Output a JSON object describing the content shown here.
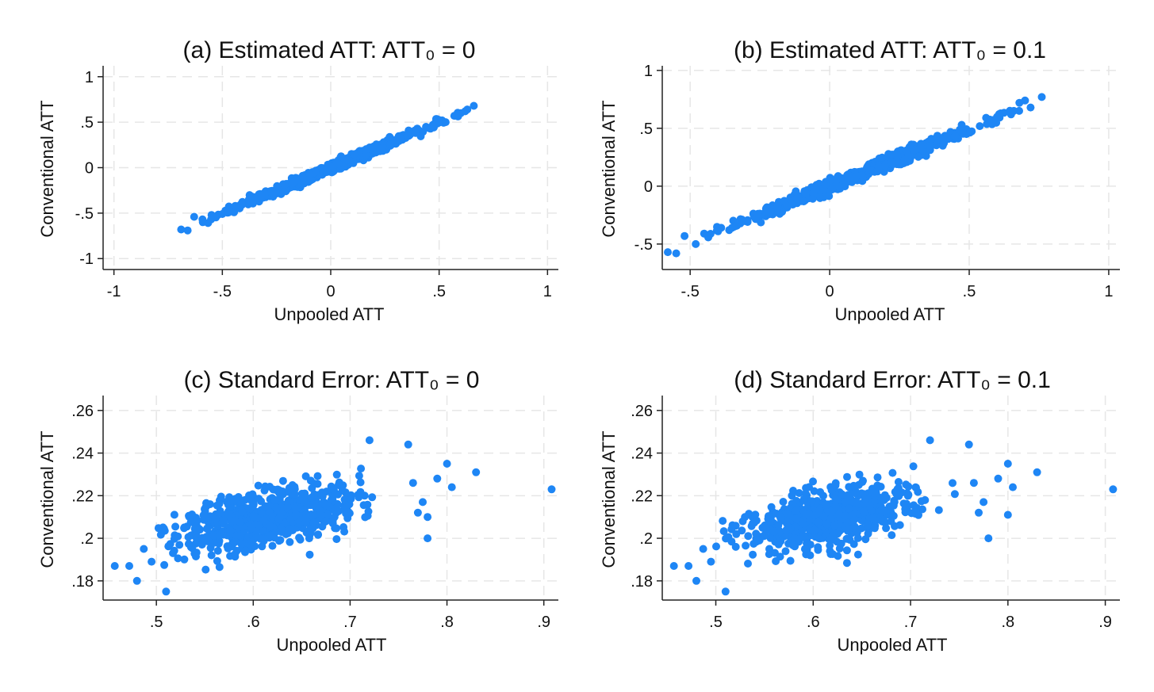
{
  "figure": {
    "point_color": "#1e86f5",
    "grid_color": "#e6e6e6",
    "axis_color": "#222222"
  },
  "chart_data": [
    {
      "type": "scatter",
      "title": "(a) Estimated ATT: ATT₀ = 0",
      "xlabel": "Unpooled ATT",
      "ylabel": "Conventional ATT",
      "xlim": [
        -1.05,
        1.05
      ],
      "ylim": [
        -1.12,
        1.12
      ],
      "xticks": [
        -1,
        -0.5,
        0,
        0.5,
        1
      ],
      "xtick_labels": [
        "-1",
        "-.5",
        "0",
        ".5",
        "1"
      ],
      "yticks": [
        -1,
        -0.5,
        0,
        0.5,
        1
      ],
      "ytick_labels": [
        "-1",
        "-.5",
        "0",
        ".5",
        "1"
      ],
      "grid": true,
      "cloud": {
        "n": 650,
        "x_center": 0.0,
        "x_sd": 0.21,
        "x_range": [
          -0.62,
          0.62
        ],
        "slope": 1.0,
        "intercept": 0.0,
        "noise_sd": 0.025,
        "seed": 11
      },
      "points": [
        {
          "x": -0.69,
          "y": -0.68
        },
        {
          "x": -0.66,
          "y": -0.69
        },
        {
          "x": -0.63,
          "y": -0.54
        },
        {
          "x": -0.59,
          "y": -0.6
        },
        {
          "x": -0.55,
          "y": -0.52
        },
        {
          "x": -0.5,
          "y": -0.51
        },
        {
          "x": -0.47,
          "y": -0.44
        },
        {
          "x": -0.44,
          "y": -0.42
        },
        {
          "x": 0.5,
          "y": 0.52
        },
        {
          "x": 0.53,
          "y": 0.5
        },
        {
          "x": 0.57,
          "y": 0.57
        },
        {
          "x": 0.6,
          "y": 0.6
        },
        {
          "x": 0.62,
          "y": 0.62
        },
        {
          "x": 0.66,
          "y": 0.68
        },
        {
          "x": 0.63,
          "y": 0.64
        }
      ]
    },
    {
      "type": "scatter",
      "title": "(b) Estimated ATT: ATT₀ = 0.1",
      "xlabel": "Unpooled ATT",
      "ylabel": "Conventional ATT",
      "xlim": [
        -0.6,
        1.04
      ],
      "ylim": [
        -0.72,
        1.04
      ],
      "xticks": [
        -0.5,
        0,
        0.5,
        1
      ],
      "xtick_labels": [
        "-.5",
        "0",
        ".5",
        "1"
      ],
      "yticks": [
        -0.5,
        0,
        0.5,
        1
      ],
      "ytick_labels": [
        "-.5",
        "0",
        ".5",
        "1"
      ],
      "grid": true,
      "cloud": {
        "n": 650,
        "x_center": 0.1,
        "x_sd": 0.21,
        "x_range": [
          -0.45,
          0.68
        ],
        "slope": 0.98,
        "intercept": 0.0,
        "noise_sd": 0.028,
        "seed": 23
      },
      "points": [
        {
          "x": -0.58,
          "y": -0.57
        },
        {
          "x": -0.55,
          "y": -0.58
        },
        {
          "x": -0.52,
          "y": -0.43
        },
        {
          "x": -0.48,
          "y": -0.5
        },
        {
          "x": -0.45,
          "y": -0.41
        },
        {
          "x": -0.4,
          "y": -0.39
        },
        {
          "x": -0.35,
          "y": -0.36
        },
        {
          "x": 0.6,
          "y": 0.6
        },
        {
          "x": 0.65,
          "y": 0.62
        },
        {
          "x": 0.68,
          "y": 0.72
        },
        {
          "x": 0.72,
          "y": 0.68
        },
        {
          "x": 0.76,
          "y": 0.77
        },
        {
          "x": 0.7,
          "y": 0.74
        },
        {
          "x": 0.66,
          "y": 0.65
        }
      ]
    },
    {
      "type": "scatter",
      "title": "(c) Standard Error: ATT₀ = 0",
      "xlabel": "Unpooled ATT",
      "ylabel": "Conventional ATT",
      "xlim": [
        0.445,
        0.915
      ],
      "ylim": [
        0.171,
        0.267
      ],
      "xticks": [
        0.5,
        0.6,
        0.7,
        0.8,
        0.9
      ],
      "xtick_labels": [
        ".5",
        ".6",
        ".7",
        ".8",
        ".9"
      ],
      "yticks": [
        0.18,
        0.2,
        0.22,
        0.24,
        0.26
      ],
      "ytick_labels": [
        ".18",
        ".2",
        ".22",
        ".24",
        ".26"
      ],
      "grid": true,
      "cloud": {
        "n": 700,
        "x_center": 0.615,
        "x_sd": 0.045,
        "x_range": [
          0.5,
          0.76
        ],
        "slope": 0.085,
        "intercept": 0.1575,
        "noise_sd": 0.0065,
        "seed": 37
      },
      "points": [
        {
          "x": 0.457,
          "y": 0.187
        },
        {
          "x": 0.472,
          "y": 0.187
        },
        {
          "x": 0.48,
          "y": 0.18
        },
        {
          "x": 0.51,
          "y": 0.175
        },
        {
          "x": 0.487,
          "y": 0.195
        },
        {
          "x": 0.495,
          "y": 0.189
        },
        {
          "x": 0.908,
          "y": 0.223
        },
        {
          "x": 0.83,
          "y": 0.231
        },
        {
          "x": 0.8,
          "y": 0.235
        },
        {
          "x": 0.805,
          "y": 0.224
        },
        {
          "x": 0.78,
          "y": 0.2
        },
        {
          "x": 0.78,
          "y": 0.21
        },
        {
          "x": 0.775,
          "y": 0.217
        },
        {
          "x": 0.77,
          "y": 0.212
        },
        {
          "x": 0.76,
          "y": 0.244
        },
        {
          "x": 0.72,
          "y": 0.246
        },
        {
          "x": 0.79,
          "y": 0.228
        },
        {
          "x": 0.765,
          "y": 0.226
        }
      ]
    },
    {
      "type": "scatter",
      "title": "(d) Standard Error: ATT₀ = 0.1",
      "xlabel": "Unpooled ATT",
      "ylabel": "Conventional ATT",
      "xlim": [
        0.445,
        0.915
      ],
      "ylim": [
        0.171,
        0.267
      ],
      "xticks": [
        0.5,
        0.6,
        0.7,
        0.8,
        0.9
      ],
      "xtick_labels": [
        ".5",
        ".6",
        ".7",
        ".8",
        ".9"
      ],
      "yticks": [
        0.18,
        0.2,
        0.22,
        0.24,
        0.26
      ],
      "ytick_labels": [
        ".18",
        ".2",
        ".22",
        ".24",
        ".26"
      ],
      "grid": true,
      "cloud": {
        "n": 700,
        "x_center": 0.62,
        "x_sd": 0.045,
        "x_range": [
          0.5,
          0.76
        ],
        "slope": 0.085,
        "intercept": 0.157,
        "noise_sd": 0.0065,
        "seed": 53
      },
      "points": [
        {
          "x": 0.457,
          "y": 0.187
        },
        {
          "x": 0.472,
          "y": 0.187
        },
        {
          "x": 0.48,
          "y": 0.18
        },
        {
          "x": 0.51,
          "y": 0.175
        },
        {
          "x": 0.487,
          "y": 0.195
        },
        {
          "x": 0.495,
          "y": 0.189
        },
        {
          "x": 0.908,
          "y": 0.223
        },
        {
          "x": 0.83,
          "y": 0.231
        },
        {
          "x": 0.8,
          "y": 0.235
        },
        {
          "x": 0.805,
          "y": 0.224
        },
        {
          "x": 0.78,
          "y": 0.2
        },
        {
          "x": 0.8,
          "y": 0.211
        },
        {
          "x": 0.775,
          "y": 0.217
        },
        {
          "x": 0.77,
          "y": 0.212
        },
        {
          "x": 0.76,
          "y": 0.244
        },
        {
          "x": 0.72,
          "y": 0.246
        },
        {
          "x": 0.79,
          "y": 0.228
        },
        {
          "x": 0.765,
          "y": 0.226
        }
      ]
    }
  ]
}
